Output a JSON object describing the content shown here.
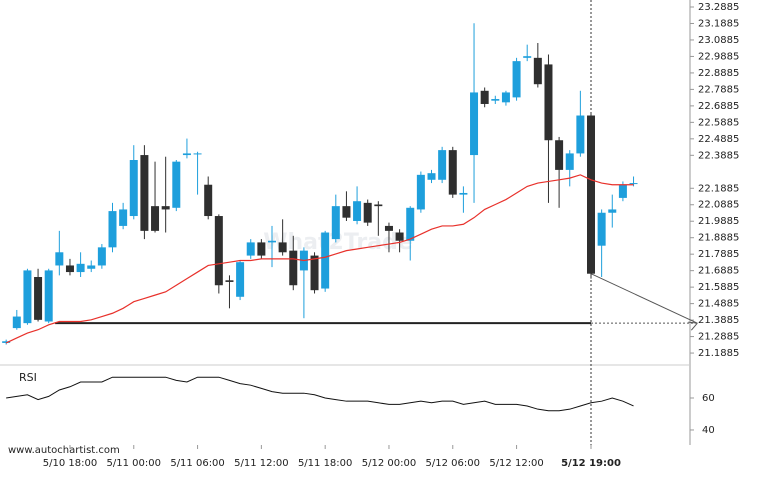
{
  "chart_data": {
    "type": "candlestick",
    "source": "www.autochartist.com",
    "watermark": "What2Trade",
    "up_color": "#1e9fdc",
    "down_color": "#2f2f2f",
    "ma_color": "#e8312b",
    "open": [
      21.25,
      21.34,
      21.37,
      21.65,
      21.38,
      21.72,
      21.72,
      21.68,
      21.7,
      21.72,
      21.83,
      21.96,
      22.02,
      22.39,
      22.08,
      22.08,
      22.07,
      22.39,
      22.4,
      22.21,
      22.02,
      21.63,
      21.53,
      21.78,
      21.86,
      21.86,
      21.86,
      21.81,
      21.69,
      21.78,
      21.58,
      21.88,
      22.08,
      21.99,
      22.1,
      22.09,
      21.96,
      21.92,
      21.87,
      22.06,
      22.24,
      22.24,
      22.42,
      22.15,
      22.39,
      22.78,
      22.72,
      22.71,
      22.74,
      22.98,
      22.98,
      22.94,
      22.48,
      22.3,
      22.4,
      22.63,
      21.84,
      22.04,
      22.13,
      22.22
    ],
    "high": [
      21.27,
      21.45,
      21.7,
      21.7,
      21.7,
      21.93,
      21.76,
      21.8,
      21.75,
      21.85,
      22.1,
      22.1,
      22.45,
      22.45,
      22.35,
      22.38,
      22.36,
      22.49,
      22.41,
      22.26,
      22.03,
      21.66,
      21.75,
      21.88,
      21.88,
      21.96,
      22.0,
      21.9,
      21.83,
      21.8,
      21.93,
      22.15,
      22.17,
      22.2,
      22.12,
      22.11,
      21.98,
      21.94,
      22.08,
      22.29,
      22.3,
      22.44,
      22.44,
      22.2,
      23.19,
      22.8,
      22.75,
      22.78,
      22.98,
      23.06,
      23.07,
      23.0,
      22.5,
      22.42,
      22.78,
      22.64,
      22.06,
      22.15,
      22.23,
      22.26
    ],
    "low": [
      21.24,
      21.33,
      21.36,
      21.38,
      21.37,
      21.66,
      21.66,
      21.65,
      21.68,
      21.7,
      21.8,
      21.94,
      22.0,
      21.88,
      21.92,
      21.92,
      22.05,
      22.37,
      22.15,
      22.0,
      21.55,
      21.46,
      21.51,
      21.76,
      21.76,
      21.71,
      21.78,
      21.57,
      21.4,
      21.55,
      21.56,
      21.86,
      21.99,
      21.97,
      21.96,
      21.9,
      21.8,
      21.8,
      21.75,
      22.04,
      22.22,
      22.22,
      22.13,
      22.04,
      22.1,
      22.68,
      22.7,
      22.69,
      22.72,
      22.96,
      22.8,
      22.1,
      22.07,
      22.2,
      22.38,
      21.64,
      21.65,
      21.95,
      22.11,
      22.2
    ],
    "close": [
      21.26,
      21.41,
      21.69,
      21.39,
      21.69,
      21.8,
      21.68,
      21.73,
      21.72,
      21.83,
      22.05,
      22.06,
      22.36,
      21.93,
      21.93,
      22.06,
      22.35,
      22.4,
      22.4,
      22.02,
      21.6,
      21.62,
      21.74,
      21.86,
      21.78,
      21.87,
      21.8,
      21.6,
      21.81,
      21.57,
      21.92,
      22.08,
      22.01,
      22.11,
      21.98,
      22.08,
      21.93,
      21.87,
      22.07,
      22.27,
      22.28,
      22.42,
      22.15,
      22.16,
      22.77,
      22.7,
      22.73,
      22.77,
      22.96,
      22.99,
      22.82,
      22.48,
      22.3,
      22.4,
      22.63,
      21.67,
      22.04,
      22.06,
      22.21,
      22.22
    ],
    "ma": [
      21.25,
      21.28,
      21.31,
      21.33,
      21.36,
      21.38,
      21.38,
      21.38,
      21.39,
      21.41,
      21.43,
      21.46,
      21.5,
      21.52,
      21.54,
      21.56,
      21.6,
      21.64,
      21.68,
      21.72,
      21.73,
      21.74,
      21.75,
      21.75,
      21.76,
      21.76,
      21.76,
      21.76,
      21.75,
      21.76,
      21.77,
      21.79,
      21.81,
      21.82,
      21.83,
      21.84,
      21.85,
      21.86,
      21.88,
      21.91,
      21.94,
      21.96,
      21.96,
      21.97,
      22.01,
      22.06,
      22.09,
      22.12,
      22.16,
      22.2,
      22.22,
      22.23,
      22.24,
      22.25,
      22.27,
      22.24,
      22.22,
      22.21,
      22.21,
      22.21
    ],
    "support_level": 21.37,
    "pattern_start": 4.6,
    "pattern_end": 55,
    "target_x": 65,
    "ylim": [
      21.116,
      23.331
    ],
    "xlim": [
      -0.58,
      64.31
    ],
    "yticks": [
      23.2885,
      23.1885,
      23.0885,
      22.9885,
      22.8885,
      22.7885,
      22.6885,
      22.5885,
      22.4885,
      22.3885,
      22.1885,
      22.0885,
      21.9885,
      21.8885,
      21.7885,
      21.6885,
      21.5885,
      21.4885,
      21.3885,
      21.2885,
      21.1885
    ],
    "xticks": [
      {
        "value": 6,
        "label": "5/10 18:00"
      },
      {
        "value": 12,
        "label": "5/11 00:00"
      },
      {
        "value": 18,
        "label": "5/11 06:00"
      },
      {
        "value": 24,
        "label": "5/11 12:00"
      },
      {
        "value": 30,
        "label": "5/11 18:00"
      },
      {
        "value": 36,
        "label": "5/12 00:00"
      },
      {
        "value": 42,
        "label": "5/12 06:00"
      },
      {
        "value": 48,
        "label": "5/12 12:00"
      },
      {
        "value": 55,
        "label": "5/12 19:00"
      }
    ],
    "rsi": {
      "title": "RSI",
      "ylim": [
        30.6,
        77.5
      ],
      "yticks": [
        60,
        40
      ],
      "values": [
        60,
        61,
        62,
        59,
        61,
        65,
        67,
        70,
        70,
        70,
        73,
        73,
        73,
        73,
        73,
        73,
        71,
        70,
        73,
        73,
        73,
        71,
        69,
        68,
        66,
        64,
        63,
        63,
        63,
        62,
        60,
        59,
        58,
        58,
        58,
        57,
        56,
        56,
        57,
        58,
        57,
        58,
        58,
        56,
        57,
        58,
        56,
        56,
        56,
        55,
        53,
        52,
        52,
        53,
        55,
        57,
        58,
        60,
        58,
        55
      ]
    }
  }
}
